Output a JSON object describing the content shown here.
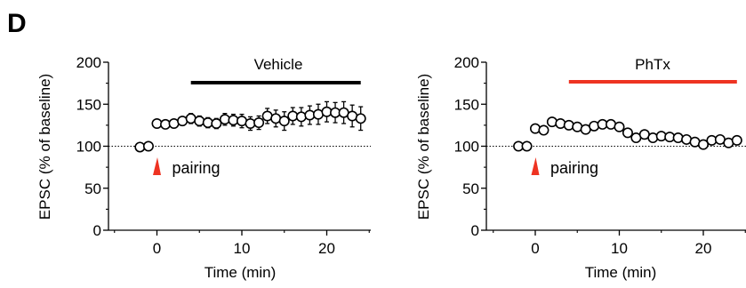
{
  "panel_label": "D",
  "colors": {
    "vehicle_bar": "#000000",
    "phtx_bar": "#ee3322",
    "arrow": "#ee3322",
    "marker_fill": "#ffffff",
    "marker_stroke": "#000000"
  },
  "chart_data": [
    {
      "type": "scatter",
      "condition_label": "Vehicle",
      "treatment_bar": [
        4,
        24
      ],
      "annotation": {
        "text": "pairing",
        "x": 0
      },
      "baseline": 100,
      "xlabel": "Time (min)",
      "ylabel": "EPSC (% of baseline)",
      "xlim": [
        -4,
        25
      ],
      "ylim": [
        0,
        200
      ],
      "xticks": [
        0,
        10,
        20
      ],
      "yticks": [
        0,
        50,
        100,
        150,
        200
      ],
      "x": [
        -2,
        -1,
        0,
        1,
        2,
        3,
        4,
        5,
        6,
        7,
        8,
        9,
        10,
        11,
        12,
        13,
        14,
        15,
        16,
        17,
        18,
        19,
        20,
        21,
        22,
        23,
        24
      ],
      "y": [
        99,
        100,
        127,
        126,
        127,
        130,
        133,
        130,
        128,
        127,
        132,
        131,
        130,
        127,
        128,
        136,
        133,
        130,
        136,
        135,
        137,
        138,
        141,
        140,
        140,
        136,
        133
      ],
      "err": [
        0,
        0,
        3,
        3,
        4,
        5,
        6,
        6,
        6,
        6,
        7,
        7,
        8,
        8,
        8,
        9,
        10,
        11,
        10,
        11,
        11,
        12,
        12,
        12,
        13,
        13,
        14
      ]
    },
    {
      "type": "scatter",
      "condition_label": "PhTx",
      "treatment_bar": [
        4,
        24
      ],
      "annotation": {
        "text": "pairing",
        "x": 0
      },
      "baseline": 100,
      "xlabel": "Time (min)",
      "ylabel": "EPSC (% of baseline)",
      "xlim": [
        -4,
        24
      ],
      "ylim": [
        0,
        200
      ],
      "xticks": [
        0,
        10,
        20
      ],
      "yticks": [
        0,
        50,
        100,
        150,
        200
      ],
      "x": [
        -2,
        -1,
        0,
        1,
        2,
        3,
        4,
        5,
        6,
        7,
        8,
        9,
        10,
        11,
        12,
        13,
        14,
        15,
        16,
        17,
        18,
        19,
        20,
        21,
        22,
        23,
        24
      ],
      "y": [
        100,
        100,
        121,
        119,
        129,
        127,
        125,
        123,
        120,
        124,
        126,
        126,
        123,
        116,
        110,
        114,
        110,
        112,
        111,
        110,
        108,
        105,
        102,
        107,
        108,
        104,
        107
      ],
      "err": [
        0,
        0,
        3,
        3,
        3,
        3,
        3,
        3,
        3,
        3,
        4,
        4,
        4,
        4,
        4,
        4,
        4,
        4,
        4,
        4,
        4,
        4,
        4,
        4,
        4,
        4,
        5
      ]
    }
  ]
}
